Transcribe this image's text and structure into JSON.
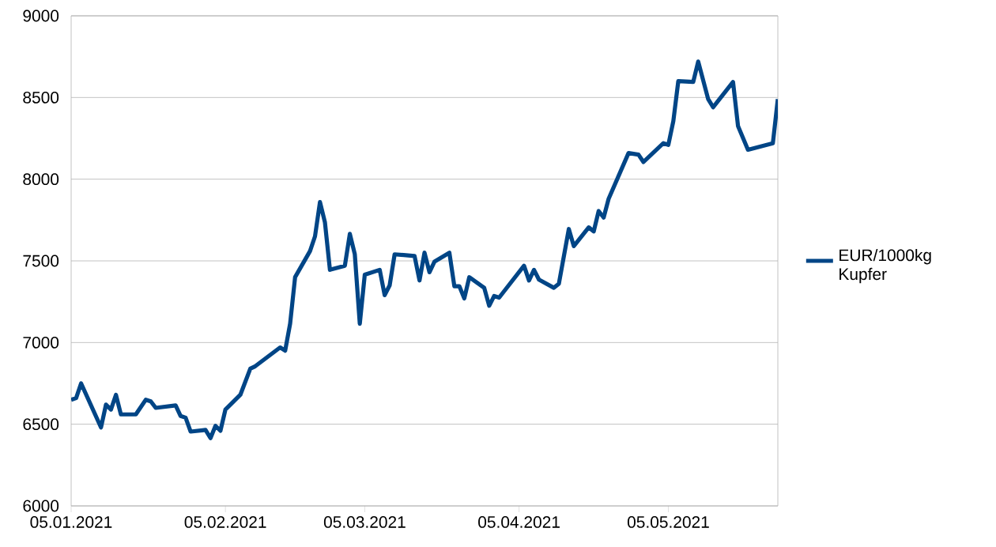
{
  "chart_data": {
    "type": "line",
    "x": [
      "2021-01-05",
      "2021-01-06",
      "2021-01-07",
      "2021-01-11",
      "2021-01-12",
      "2021-01-13",
      "2021-01-14",
      "2021-01-15",
      "2021-01-18",
      "2021-01-20",
      "2021-01-21",
      "2021-01-22",
      "2021-01-26",
      "2021-01-27",
      "2021-01-28",
      "2021-01-29",
      "2021-02-01",
      "2021-02-02",
      "2021-02-03",
      "2021-02-04",
      "2021-02-05",
      "2021-02-08",
      "2021-02-10",
      "2021-02-11",
      "2021-02-16",
      "2021-02-17",
      "2021-02-18",
      "2021-02-19",
      "2021-02-22",
      "2021-02-23",
      "2021-02-24",
      "2021-02-25",
      "2021-02-26",
      "2021-03-01",
      "2021-03-02",
      "2021-03-03",
      "2021-03-04",
      "2021-03-05",
      "2021-03-08",
      "2021-03-09",
      "2021-03-10",
      "2021-03-11",
      "2021-03-15",
      "2021-03-16",
      "2021-03-17",
      "2021-03-18",
      "2021-03-19",
      "2021-03-22",
      "2021-03-23",
      "2021-03-24",
      "2021-03-25",
      "2021-03-26",
      "2021-03-29",
      "2021-03-30",
      "2021-03-31",
      "2021-04-01",
      "2021-04-06",
      "2021-04-07",
      "2021-04-08",
      "2021-04-09",
      "2021-04-12",
      "2021-04-13",
      "2021-04-15",
      "2021-04-16",
      "2021-04-19",
      "2021-04-20",
      "2021-04-21",
      "2021-04-22",
      "2021-04-23",
      "2021-04-27",
      "2021-04-28",
      "2021-04-29",
      "2021-04-30",
      "2021-05-04",
      "2021-05-05",
      "2021-05-06",
      "2021-05-07",
      "2021-05-10",
      "2021-05-11",
      "2021-05-13",
      "2021-05-14",
      "2021-05-18",
      "2021-05-19",
      "2021-05-21",
      "2021-05-26",
      "2021-05-27"
    ],
    "series": [
      {
        "name": "EUR/1000kg Kupfer",
        "color": "#004586",
        "values": [
          6650,
          6660,
          6750,
          6480,
          6620,
          6590,
          6680,
          6560,
          6560,
          6650,
          6640,
          6600,
          6615,
          6550,
          6540,
          6455,
          6465,
          6415,
          6490,
          6460,
          6590,
          6680,
          6840,
          6855,
          6970,
          6950,
          7115,
          7400,
          7560,
          7650,
          7860,
          7735,
          7445,
          7470,
          7665,
          7540,
          7115,
          7415,
          7445,
          7290,
          7350,
          7540,
          7530,
          7380,
          7550,
          7430,
          7495,
          7550,
          7345,
          7345,
          7270,
          7400,
          7335,
          7225,
          7285,
          7275,
          7470,
          7380,
          7445,
          7385,
          7335,
          7360,
          7695,
          7590,
          7705,
          7680,
          7805,
          7765,
          7880,
          8160,
          8155,
          8150,
          8105,
          8220,
          8210,
          8355,
          8600,
          8595,
          8720,
          8490,
          8440,
          8595,
          8325,
          8180,
          8220,
          8490
        ]
      }
    ],
    "xlim": [
      "2021-01-05",
      "2021-05-27"
    ],
    "xticks": [
      {
        "value": "2021-01-05",
        "label": "05.01.2021"
      },
      {
        "value": "2021-02-05",
        "label": "05.02.2021"
      },
      {
        "value": "2021-03-05",
        "label": "05.03.2021"
      },
      {
        "value": "2021-04-05",
        "label": "05.04.2021"
      },
      {
        "value": "2021-05-05",
        "label": "05.05.2021"
      }
    ],
    "ylim": [
      6000,
      9000
    ],
    "yticks": [
      6000,
      6500,
      7000,
      7500,
      8000,
      8500,
      9000
    ],
    "grid": "y",
    "legend": "right",
    "marker": "none",
    "line_style": "solid"
  }
}
